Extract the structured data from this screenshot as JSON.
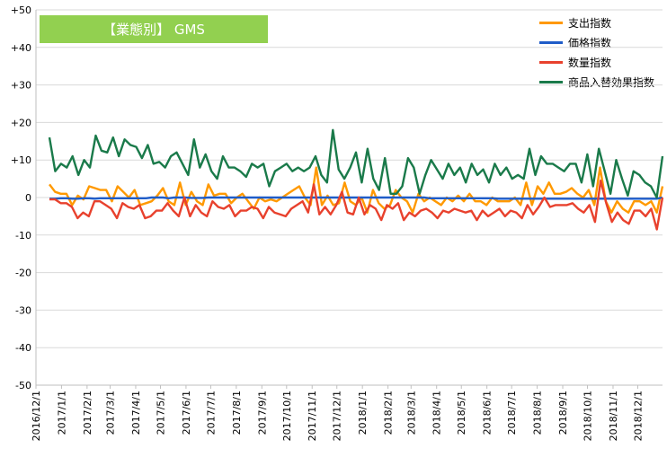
{
  "chart_data": {
    "type": "line",
    "title": "【業態別】 GMS",
    "ylim": [
      -50,
      50
    ],
    "y_ticks": [
      "+50",
      "+40",
      "+30",
      "+20",
      "+10",
      "0",
      "-10",
      "-20",
      "-30",
      "-40",
      "-50"
    ],
    "x_tick_labels": [
      "2016/12/1",
      "2017/1/1",
      "2017/2/1",
      "2017/3/1",
      "2017/4/1",
      "2017/5/1",
      "2017/6/1",
      "2017/7/1",
      "2017/8/1",
      "2017/9/1",
      "2017/10/1",
      "2017/11/1",
      "2017/12/1",
      "2018/1/1",
      "2018/2/1",
      "2018/3/1",
      "2018/4/1",
      "2018/5/1",
      "2018/6/1",
      "2018/7/1",
      "2018/8/1",
      "2018/9/1",
      "2018/10/1",
      "2018/11/1",
      "2018/12/1"
    ],
    "x_start": "2016-12-01",
    "x_end": "2018-12-31",
    "grid": "horizontal",
    "legend_position": "top-right",
    "series": [
      {
        "name": "支出指数",
        "color": "#FF9900",
        "values": [
          3.5,
          1.5,
          1,
          1,
          -2,
          0.5,
          -0.5,
          3,
          2.5,
          2,
          2,
          -1,
          3,
          1.5,
          0,
          2,
          -2,
          -1.5,
          -1,
          0.5,
          2.5,
          -1,
          -2,
          4,
          -2,
          1.5,
          -1,
          -2,
          3.5,
          0.5,
          1,
          1,
          -1.5,
          0,
          1,
          -1,
          -3,
          0,
          -1,
          -0.5,
          -1,
          0,
          1,
          2,
          3,
          0,
          -2,
          8,
          -2,
          0.5,
          -2,
          -1.5,
          4,
          -1,
          -2,
          0,
          -4,
          2,
          -1.5,
          -3,
          -2,
          2,
          0,
          -1,
          -4,
          1,
          -1,
          0,
          -1,
          -2,
          0,
          -1,
          0.5,
          -1,
          1,
          -1,
          -1,
          -2,
          0,
          -1,
          -1,
          -1,
          0,
          -2,
          4,
          -2,
          3,
          1,
          4,
          1,
          1,
          1.5,
          2.5,
          1,
          0,
          2,
          -2,
          8,
          -1,
          -4,
          -1,
          -3,
          -4,
          -1,
          -1,
          -2,
          -1,
          -4,
          3
        ]
      },
      {
        "name": "価格指数",
        "color": "#1F5CC8",
        "values": [
          -0.3,
          -0.3,
          -0.2,
          -0.2,
          -0.3,
          -0.3,
          -0.2,
          -0.2,
          -0.3,
          -0.2,
          -0.2,
          -0.2,
          -0.2,
          -0.2,
          -0.2,
          -0.2,
          -0.2,
          -0.2,
          0,
          0,
          0,
          -0.2,
          0,
          0,
          0,
          -0.1,
          -0.1,
          -0.1,
          0,
          0,
          0,
          0,
          0,
          0,
          0,
          0,
          0,
          0,
          0,
          0,
          0,
          0,
          0,
          0,
          0,
          0,
          0,
          0,
          0,
          0,
          0,
          0,
          0,
          0,
          0,
          0,
          0,
          0,
          0,
          0,
          0,
          0,
          0,
          0,
          0,
          0,
          0,
          -0.2,
          -0.2,
          -0.2,
          -0.2,
          -0.2,
          -0.2,
          -0.2,
          -0.2,
          -0.2,
          -0.2,
          -0.2,
          -0.2,
          -0.3,
          -0.3,
          -0.3,
          -0.3,
          -0.3,
          -0.3,
          -0.3,
          -0.3,
          -0.3,
          -0.3,
          -0.3,
          -0.3,
          -0.3,
          -0.3,
          -0.3,
          -0.3,
          -0.3,
          -0.3,
          -0.3,
          -0.3,
          -0.3,
          -0.3,
          -0.3,
          -0.3,
          -0.3,
          -0.3,
          -0.3,
          -0.3,
          -0.3,
          0
        ]
      },
      {
        "name": "数量指数",
        "color": "#E8412D",
        "values": [
          -0.5,
          -0.5,
          -1.5,
          -1.5,
          -2.5,
          -5.5,
          -4,
          -5,
          -1,
          -1,
          -2,
          -3,
          -5.5,
          -1.5,
          -2.5,
          -3,
          -2,
          -5.5,
          -5,
          -3.5,
          -3.5,
          -1.5,
          -3.5,
          -5,
          0,
          -5,
          -2,
          -4,
          -5,
          -1,
          -2.5,
          -3,
          -2,
          -5,
          -3.5,
          -3.5,
          -2.5,
          -3,
          -5.5,
          -2.5,
          -4,
          -4.5,
          -5,
          -3,
          -2,
          -1,
          -4,
          3.5,
          -4.5,
          -2.5,
          -4.5,
          -2,
          1.5,
          -4,
          -4.5,
          0,
          -4.5,
          -2,
          -3,
          -6,
          -2,
          -3,
          -1.5,
          -6,
          -4,
          -5,
          -3.5,
          -3,
          -4,
          -5.5,
          -3.5,
          -4,
          -3,
          -3.5,
          -4,
          -3.5,
          -6,
          -3.5,
          -5,
          -4,
          -3,
          -5,
          -3.5,
          -4,
          -5.5,
          -2,
          -4.5,
          -2.5,
          0,
          -2.5,
          -2,
          -2,
          -2,
          -1.5,
          -3,
          -4,
          -2,
          -6.5,
          4.5,
          -1.5,
          -6.5,
          -4,
          -6,
          -7,
          -3.5,
          -3.5,
          -5,
          -3,
          -8.5,
          0
        ]
      },
      {
        "name": "商品入替効果指数",
        "color": "#1A7A4A",
        "values": [
          16,
          7,
          9,
          8,
          11,
          6,
          10,
          8,
          16.5,
          12.5,
          12,
          16,
          11,
          15.5,
          14,
          13.5,
          10.5,
          14,
          9,
          9.5,
          8,
          11,
          12,
          9,
          6,
          15.5,
          8,
          11.5,
          7,
          5,
          11,
          8,
          8,
          7,
          5.5,
          9,
          8,
          9,
          3,
          7,
          8,
          9,
          7,
          8,
          7,
          8,
          11,
          6,
          4,
          18,
          7.5,
          5,
          8,
          12,
          4,
          13,
          5,
          2,
          10.5,
          1,
          1,
          3,
          10.5,
          8,
          1,
          6,
          10,
          7.5,
          5,
          9,
          6,
          8,
          4,
          9,
          6,
          7.5,
          4,
          9,
          6,
          8,
          5,
          6,
          5,
          13,
          6,
          11,
          9,
          9,
          8,
          7,
          9,
          9,
          4,
          11.5,
          3,
          13,
          7,
          1,
          10,
          5,
          0.5,
          7,
          6,
          4,
          3,
          0,
          11
        ]
      }
    ]
  }
}
